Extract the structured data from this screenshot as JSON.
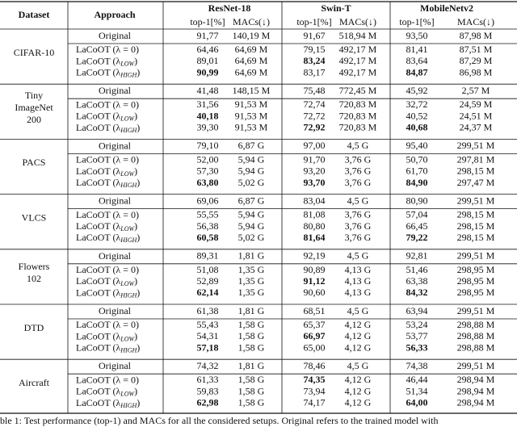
{
  "header": {
    "dataset": "Dataset",
    "approach": "Approach",
    "models": [
      "ResNet-18",
      "Swin-T",
      "MobileNetv2"
    ],
    "metrics": [
      "top-1[%]",
      "MACs(↓)",
      "top-1[%]",
      "MACs(↓)",
      "top-1[%]",
      "MACs(↓)"
    ]
  },
  "groups": [
    {
      "dataset": [
        "CIFAR-10"
      ],
      "rows": [
        {
          "approach": [
            {
              "text": "Original"
            }
          ],
          "cells": [
            "91,77",
            "140,19 M",
            "91,67",
            "518,94 M",
            "93,50",
            "87,98 M"
          ]
        },
        {
          "approach": [
            {
              "text": "LaCoOT (λ = 0)"
            }
          ],
          "cells": [
            "64,46",
            "64,69 M",
            "79,15",
            "492,17 M",
            "81,41",
            "87,51 M"
          ]
        },
        {
          "approach": [
            {
              "text": "LaCoOT (λ"
            },
            {
              "sub": "LOW"
            },
            {
              "text": ")"
            }
          ],
          "cells": [
            "89,01",
            "64,69 M",
            "83,24",
            "492,17 M",
            "83,64",
            "87,29 M"
          ],
          "bold": [
            false,
            false,
            true,
            false,
            false,
            false
          ]
        },
        {
          "approach": [
            {
              "text": "LaCoOT (λ"
            },
            {
              "sub": "HIGH"
            },
            {
              "text": ")"
            }
          ],
          "cells": [
            "90,99",
            "64,69 M",
            "83,17",
            "492,17 M",
            "84,87",
            "86,98 M"
          ],
          "bold": [
            true,
            false,
            false,
            false,
            true,
            false
          ]
        }
      ]
    },
    {
      "dataset": [
        "Tiny",
        "ImageNet",
        "200"
      ],
      "rows": [
        {
          "approach": [
            {
              "text": "Original"
            }
          ],
          "cells": [
            "41,48",
            "148,15 M",
            "75,48",
            "772,45 M",
            "45,92",
            "2,57 M"
          ]
        },
        {
          "approach": [
            {
              "text": "LaCoOT (λ = 0)"
            }
          ],
          "cells": [
            "31,56",
            "91,53 M",
            "72,74",
            "720,83 M",
            "32,72",
            "24,59 M"
          ]
        },
        {
          "approach": [
            {
              "text": "LaCoOT (λ"
            },
            {
              "sub": "LOW"
            },
            {
              "text": ")"
            }
          ],
          "cells": [
            "40,18",
            "91,53 M",
            "72,72",
            "720,83 M",
            "40,52",
            "24,51 M"
          ],
          "bold": [
            true,
            false,
            false,
            false,
            false,
            false
          ]
        },
        {
          "approach": [
            {
              "text": "LaCoOT (λ"
            },
            {
              "sub": "HIGH"
            },
            {
              "text": ")"
            }
          ],
          "cells": [
            "39,30",
            "91,53 M",
            "72,92",
            "720,83 M",
            "40,68",
            "24,37 M"
          ],
          "bold": [
            false,
            false,
            true,
            false,
            true,
            false
          ]
        }
      ]
    },
    {
      "dataset": [
        "PACS"
      ],
      "rows": [
        {
          "approach": [
            {
              "text": "Original"
            }
          ],
          "cells": [
            "79,10",
            "6,87 G",
            "97,00",
            "4,5 G",
            "95,40",
            "299,51 M"
          ]
        },
        {
          "approach": [
            {
              "text": "LaCoOT (λ = 0)"
            }
          ],
          "cells": [
            "52,00",
            "5,94 G",
            "91,70",
            "3,76 G",
            "50,70",
            "297,81 M"
          ]
        },
        {
          "approach": [
            {
              "text": "LaCoOT (λ"
            },
            {
              "sub": "LOW"
            },
            {
              "text": ")"
            }
          ],
          "cells": [
            "57,30",
            "5,94 G",
            "93,20",
            "3,76 G",
            "61,70",
            "298,15 M"
          ]
        },
        {
          "approach": [
            {
              "text": "LaCoOT (λ"
            },
            {
              "sub": "HIGH"
            },
            {
              "text": ")"
            }
          ],
          "cells": [
            "63,80",
            "5,02 G",
            "93,70",
            "3,76 G",
            "84,90",
            "297,47 M"
          ],
          "bold": [
            true,
            false,
            true,
            false,
            true,
            false
          ]
        }
      ]
    },
    {
      "dataset": [
        "VLCS"
      ],
      "rows": [
        {
          "approach": [
            {
              "text": "Original"
            }
          ],
          "cells": [
            "69,06",
            "6,87 G",
            "83,04",
            "4,5 G",
            "80,90",
            "299,51 M"
          ]
        },
        {
          "approach": [
            {
              "text": "LaCoOT (λ = 0)"
            }
          ],
          "cells": [
            "55,55",
            "5,94 G",
            "81,08",
            "3,76 G",
            "57,04",
            "298,15 M"
          ]
        },
        {
          "approach": [
            {
              "text": "LaCoOT (λ"
            },
            {
              "sub": "LOW"
            },
            {
              "text": ")"
            }
          ],
          "cells": [
            "56,38",
            "5,94 G",
            "80,80",
            "3,76 G",
            "66,45",
            "298,15 M"
          ]
        },
        {
          "approach": [
            {
              "text": "LaCoOT (λ"
            },
            {
              "sub": "HIGH"
            },
            {
              "text": ")"
            }
          ],
          "cells": [
            "60,58",
            "5,02 G",
            "81,64",
            "3,76 G",
            "79,22",
            "298,15 M"
          ],
          "bold": [
            true,
            false,
            true,
            false,
            true,
            false
          ]
        }
      ]
    },
    {
      "dataset": [
        "Flowers",
        "102"
      ],
      "rows": [
        {
          "approach": [
            {
              "text": "Original"
            }
          ],
          "cells": [
            "89,31",
            "1,81 G",
            "92,19",
            "4,5 G",
            "92,81",
            "299,51 M"
          ]
        },
        {
          "approach": [
            {
              "text": "LaCoOT (λ = 0)"
            }
          ],
          "cells": [
            "51,08",
            "1,35 G",
            "90,89",
            "4,13 G",
            "51,46",
            "298,95 M"
          ]
        },
        {
          "approach": [
            {
              "text": "LaCoOT (λ"
            },
            {
              "sub": "LOW"
            },
            {
              "text": ")"
            }
          ],
          "cells": [
            "52,89",
            "1,35 G",
            "91,12",
            "4,13 G",
            "63,38",
            "298,95 M"
          ],
          "bold": [
            false,
            false,
            true,
            false,
            false,
            false
          ]
        },
        {
          "approach": [
            {
              "text": "LaCoOT (λ"
            },
            {
              "sub": "HIGH"
            },
            {
              "text": ")"
            }
          ],
          "cells": [
            "62,14",
            "1,35 G",
            "90,60",
            "4,13 G",
            "84,32",
            "298,95 M"
          ],
          "bold": [
            true,
            false,
            false,
            false,
            true,
            false
          ]
        }
      ]
    },
    {
      "dataset": [
        "DTD"
      ],
      "rows": [
        {
          "approach": [
            {
              "text": "Original"
            }
          ],
          "cells": [
            "61,38",
            "1,81 G",
            "68,51",
            "4,5 G",
            "63,94",
            "299,51 M"
          ]
        },
        {
          "approach": [
            {
              "text": "LaCoOT (λ = 0)"
            }
          ],
          "cells": [
            "55,43",
            "1,58 G",
            "65,37",
            "4,12 G",
            "53,24",
            "298,88 M"
          ]
        },
        {
          "approach": [
            {
              "text": "LaCoOT (λ"
            },
            {
              "sub": "LOW"
            },
            {
              "text": ")"
            }
          ],
          "cells": [
            "54,31",
            "1,58 G",
            "66,97",
            "4,12 G",
            "53,77",
            "298,88 M"
          ],
          "bold": [
            false,
            false,
            true,
            false,
            false,
            false
          ]
        },
        {
          "approach": [
            {
              "text": "LaCoOT (λ"
            },
            {
              "sub": "HIGH"
            },
            {
              "text": ")"
            }
          ],
          "cells": [
            "57,18",
            "1,58 G",
            "65,00",
            "4,12 G",
            "56,33",
            "298,88 M"
          ],
          "bold": [
            true,
            false,
            false,
            false,
            true,
            false
          ]
        }
      ]
    },
    {
      "dataset": [
        "Aircraft"
      ],
      "rows": [
        {
          "approach": [
            {
              "text": "Original"
            }
          ],
          "cells": [
            "74,32",
            "1,81 G",
            "78,46",
            "4,5 G",
            "74,38",
            "299,51 M"
          ]
        },
        {
          "approach": [
            {
              "text": "LaCoOT (λ = 0)"
            }
          ],
          "cells": [
            "61,33",
            "1,58 G",
            "74,35",
            "4,12 G",
            "46,44",
            "298,94 M"
          ],
          "bold": [
            false,
            false,
            true,
            false,
            false,
            false
          ]
        },
        {
          "approach": [
            {
              "text": "LaCoOT (λ"
            },
            {
              "sub": "LOW"
            },
            {
              "text": ")"
            }
          ],
          "cells": [
            "59,83",
            "1,58 G",
            "73,94",
            "4,12 G",
            "51,34",
            "298,94 M"
          ]
        },
        {
          "approach": [
            {
              "text": "LaCoOT (λ"
            },
            {
              "sub": "HIGH"
            },
            {
              "text": ")"
            }
          ],
          "cells": [
            "62,98",
            "1,58 G",
            "74,17",
            "4,12 G",
            "64,00",
            "298,94 M"
          ],
          "bold": [
            true,
            false,
            false,
            false,
            true,
            false
          ]
        }
      ]
    }
  ],
  "caption": "ble 1: Test performance (top-1) and MACs for all the considered setups. Original refers to the trained model with"
}
